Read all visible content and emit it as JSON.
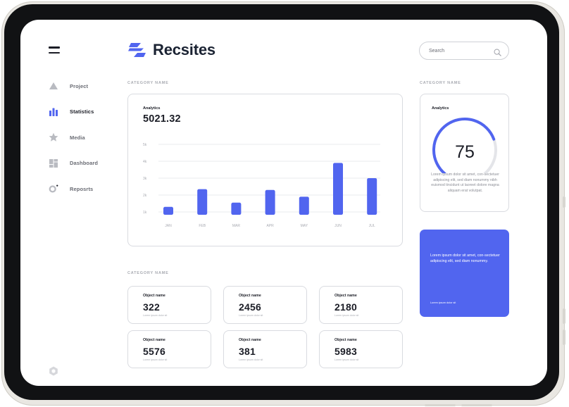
{
  "app": {
    "name": "Recsites",
    "accent": "#5165ef",
    "text_dark": "#1b1d26"
  },
  "sidebar": {
    "items": [
      {
        "label": "Project",
        "icon": "triangle-icon",
        "active": false
      },
      {
        "label": "Statistics",
        "icon": "bar-chart-icon",
        "active": true
      },
      {
        "label": "Media",
        "icon": "star-icon",
        "active": false
      },
      {
        "label": "Dashboard",
        "icon": "dashboard-grid-icon",
        "active": false
      },
      {
        "label": "Reposrts",
        "icon": "reports-circle-icon",
        "active": false
      }
    ]
  },
  "header": {
    "search_placeholder": "Search"
  },
  "sections": {
    "top_label": "CATEGORY NAME",
    "right_label": "CATEGORY NAME",
    "bottom_label": "CATEGORY NAME"
  },
  "analytics_chart": {
    "title": "Analytics",
    "value": "5021.32",
    "chart_data": {
      "type": "bar",
      "categories": [
        "JAN",
        "FEB",
        "MAR",
        "APR",
        "MAY",
        "JUN",
        "JUL"
      ],
      "values": [
        1300,
        2350,
        1550,
        2300,
        1900,
        3900,
        3000
      ],
      "y_ticks": [
        "1k",
        "2k",
        "3k",
        "4k",
        "5k"
      ],
      "ylim": [
        500,
        5000
      ],
      "color": "#5165ef",
      "grid": true
    }
  },
  "gauge": {
    "title": "Analytics",
    "value": "75",
    "percent": 75,
    "text": "Lorem ipsum dolor sit amet, con-sectetuer adipiscing elit, sed diam nonummy nibh euismod tincidunt ut laoreet dolore magna aliquam erat volutpat."
  },
  "promo": {
    "text": "Lorem ipsum dolor sit amet, con-sectetuer adipiscing elit, sed diam nonummy.",
    "footer": "Lorem ipsum dolor sit"
  },
  "stats": [
    {
      "label": "Object name",
      "value": "322",
      "sub": "Lorem ipsum dolor sit"
    },
    {
      "label": "Object name",
      "value": "2456",
      "sub": "Lorem ipsum dolor sit"
    },
    {
      "label": "Object name",
      "value": "2180",
      "sub": "Lorem ipsum dolor sit"
    },
    {
      "label": "Object name",
      "value": "5576",
      "sub": "Lorem ipsum dolor sit"
    },
    {
      "label": "Object name",
      "value": "381",
      "sub": "Lorem ipsum dolor sit"
    },
    {
      "label": "Object name",
      "value": "5983",
      "sub": "Lorem ipsum dolor sit"
    }
  ]
}
